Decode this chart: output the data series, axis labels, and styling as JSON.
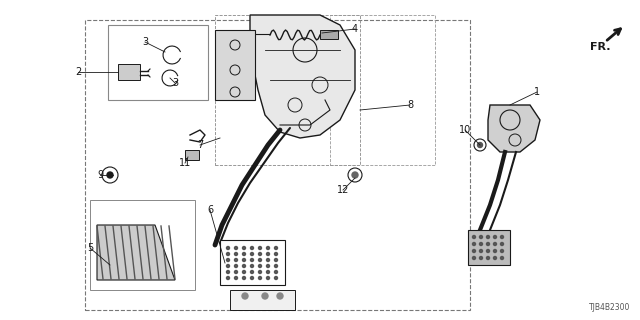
{
  "background_color": "#ffffff",
  "line_color": "#1a1a1a",
  "part_number_label": "TJB4B2300",
  "fig_width": 6.4,
  "fig_height": 3.2,
  "dpi": 100
}
